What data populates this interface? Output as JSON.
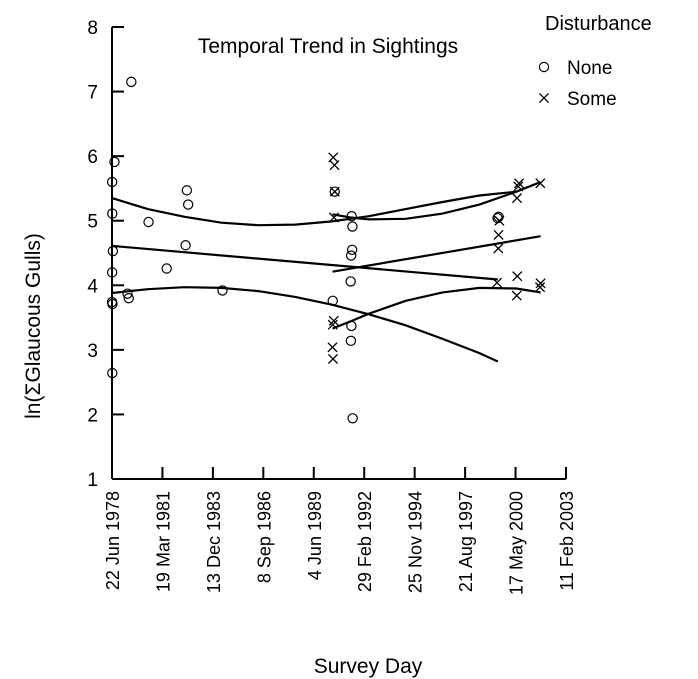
{
  "chart_data": {
    "type": "scatter",
    "title": "Temporal Trend in Sightings",
    "xlabel": "Survey Day",
    "ylabel": "ln(ΣGlaucous Gulls)",
    "x_ticks": [
      "22 Jun 1978",
      "19 Mar 1981",
      "13 Dec 1983",
      "8 Sep 1986",
      "4 Jun 1989",
      "29 Feb 1992",
      "25 Nov 1994",
      "21 Aug 1997",
      "17 May 2000",
      "11 Feb 2003"
    ],
    "xlim": [
      "1978-06-22",
      "2003-02-11"
    ],
    "ylim": [
      1,
      8
    ],
    "y_ticks": [
      1,
      2,
      3,
      4,
      5,
      6,
      7,
      8
    ],
    "grid": false,
    "legend": {
      "title": "Disturbance",
      "placement": "top-right"
    },
    "series": [
      {
        "name": "None",
        "marker": "circle",
        "points": [
          [
            "1978-06-28",
            2.64
          ],
          [
            "1978-06-22",
            3.74
          ],
          [
            "1978-07-01",
            3.71
          ],
          [
            "1978-06-25",
            4.2
          ],
          [
            "1978-07-10",
            4.53
          ],
          [
            "1978-06-28",
            5.11
          ],
          [
            "1978-06-25",
            5.6
          ],
          [
            "1978-08-10",
            5.91
          ],
          [
            "1979-05-20",
            3.8
          ],
          [
            "1979-04-25",
            3.87
          ],
          [
            "1979-07-10",
            7.15
          ],
          [
            "1980-06-15",
            4.98
          ],
          [
            "1981-06-10",
            4.26
          ],
          [
            "1982-06-20",
            4.62
          ],
          [
            "1982-07-15",
            5.47
          ],
          [
            "1982-08-10",
            5.25
          ],
          [
            "1984-06-20",
            3.92
          ],
          [
            "1990-06-15",
            3.76
          ],
          [
            "1990-07-25",
            5.45
          ],
          [
            "1991-07-15",
            1.94
          ],
          [
            "1991-06-10",
            3.14
          ],
          [
            "1991-06-20",
            3.37
          ],
          [
            "1991-06-05",
            4.06
          ],
          [
            "1991-06-15",
            4.46
          ],
          [
            "1991-07-05",
            4.55
          ],
          [
            "1991-07-10",
            4.91
          ],
          [
            "1991-06-25",
            5.07
          ],
          [
            "1999-05-25",
            5.04
          ],
          [
            "1999-06-15",
            5.06
          ]
        ]
      },
      {
        "name": "Some",
        "marker": "x",
        "points": [
          [
            "1990-06-20",
            2.86
          ],
          [
            "1990-06-10",
            3.04
          ],
          [
            "1990-06-15",
            3.39
          ],
          [
            "1990-07-05",
            3.45
          ],
          [
            "1990-07-10",
            5.05
          ],
          [
            "1990-07-25",
            5.45
          ],
          [
            "1990-07-20",
            5.86
          ],
          [
            "1990-06-25",
            5.98
          ],
          [
            "1999-05-15",
            4.04
          ],
          [
            "1999-06-10",
            4.57
          ],
          [
            "1999-06-15",
            4.78
          ],
          [
            "1999-07-01",
            5.0
          ],
          [
            "2000-06-10",
            3.84
          ],
          [
            "2000-06-20",
            4.14
          ],
          [
            "2000-06-15",
            5.35
          ],
          [
            "2000-07-10",
            5.53
          ],
          [
            "2000-07-25",
            5.58
          ],
          [
            "2001-09-15",
            3.97
          ],
          [
            "2001-09-25",
            4.03
          ],
          [
            "2001-09-20",
            5.58
          ]
        ]
      }
    ],
    "fit_lines": [
      {
        "series": "None",
        "role": "upper",
        "points": [
          [
            "1978-06-22",
            5.35
          ],
          [
            "1980-06-01",
            5.18
          ],
          [
            "1982-06-01",
            5.06
          ],
          [
            "1984-06-01",
            4.97
          ],
          [
            "1986-06-01",
            4.93
          ],
          [
            "1988-06-01",
            4.94
          ],
          [
            "1990-06-01",
            4.99
          ],
          [
            "1992-06-01",
            5.07
          ],
          [
            "1994-06-01",
            5.18
          ],
          [
            "1996-06-01",
            5.29
          ],
          [
            "1998-06-01",
            5.39
          ],
          [
            "2000-06-01",
            5.45
          ]
        ]
      },
      {
        "series": "None",
        "role": "fit",
        "points": [
          [
            "1978-06-22",
            4.61
          ],
          [
            "1999-06-01",
            4.09
          ]
        ]
      },
      {
        "series": "None",
        "role": "lower",
        "points": [
          [
            "1978-06-22",
            3.88
          ],
          [
            "1980-06-01",
            3.94
          ],
          [
            "1982-06-01",
            3.97
          ],
          [
            "1984-06-01",
            3.96
          ],
          [
            "1986-06-01",
            3.91
          ],
          [
            "1988-06-01",
            3.82
          ],
          [
            "1990-06-01",
            3.7
          ],
          [
            "1992-06-01",
            3.55
          ],
          [
            "1994-06-01",
            3.38
          ],
          [
            "1996-06-01",
            3.17
          ],
          [
            "1998-06-01",
            2.95
          ],
          [
            "1999-06-01",
            2.82
          ]
        ]
      },
      {
        "series": "Some",
        "role": "upper",
        "points": [
          [
            "1990-06-10",
            5.1
          ],
          [
            "1991-06-01",
            5.05
          ],
          [
            "1992-06-01",
            5.02
          ],
          [
            "1994-06-01",
            5.03
          ],
          [
            "1996-06-01",
            5.11
          ],
          [
            "1998-06-01",
            5.25
          ],
          [
            "2000-06-01",
            5.45
          ],
          [
            "2001-09-25",
            5.6
          ]
        ]
      },
      {
        "series": "Some",
        "role": "fit",
        "points": [
          [
            "1990-06-10",
            4.21
          ],
          [
            "2001-09-25",
            4.76
          ]
        ]
      },
      {
        "series": "Some",
        "role": "lower",
        "points": [
          [
            "1990-06-10",
            3.33
          ],
          [
            "1991-06-01",
            3.44
          ],
          [
            "1992-06-01",
            3.56
          ],
          [
            "1994-06-01",
            3.76
          ],
          [
            "1996-06-01",
            3.89
          ],
          [
            "1998-06-01",
            3.96
          ],
          [
            "2000-06-01",
            3.95
          ],
          [
            "2001-09-25",
            3.89
          ]
        ]
      }
    ]
  }
}
